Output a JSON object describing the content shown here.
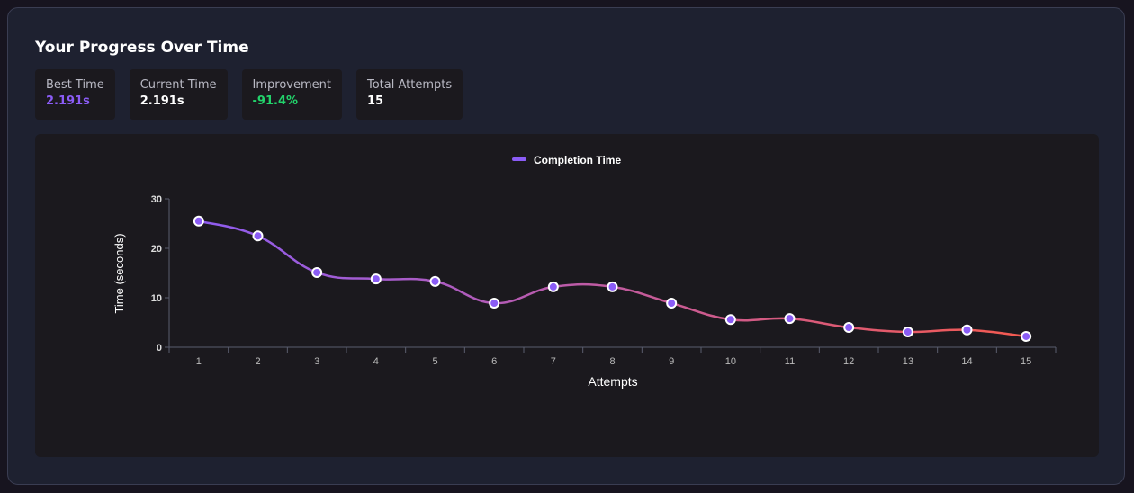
{
  "title": "Your Progress Over Time",
  "stats": [
    {
      "label": "Best Time",
      "value": "2.191s",
      "color": "#8b5cf6"
    },
    {
      "label": "Current Time",
      "value": "2.191s",
      "color": "#ffffff"
    },
    {
      "label": "Improvement",
      "value": "-91.4%",
      "color": "#22d36b"
    },
    {
      "label": "Total Attempts",
      "value": "15",
      "color": "#ffffff"
    }
  ],
  "chart_data": {
    "type": "line",
    "legend": {
      "label": "Completion Time",
      "position": "top"
    },
    "xlabel": "Attempts",
    "ylabel": "Time (seconds)",
    "categories": [
      "1",
      "2",
      "3",
      "4",
      "5",
      "6",
      "7",
      "8",
      "9",
      "10",
      "11",
      "12",
      "13",
      "14",
      "15"
    ],
    "series": [
      {
        "name": "Completion Time",
        "values": [
          25.5,
          22.5,
          15.1,
          13.8,
          13.3,
          8.9,
          12.2,
          12.2,
          8.9,
          5.6,
          5.8,
          4.0,
          3.1,
          3.5,
          2.191
        ]
      }
    ],
    "ylim": [
      0,
      30
    ],
    "yticks": [
      "0",
      "10",
      "20",
      "30"
    ],
    "grid": false,
    "colors": {
      "line_start": "#8b5cf6",
      "line_end": "#f85a4a",
      "point": "#8b5cf6"
    }
  }
}
